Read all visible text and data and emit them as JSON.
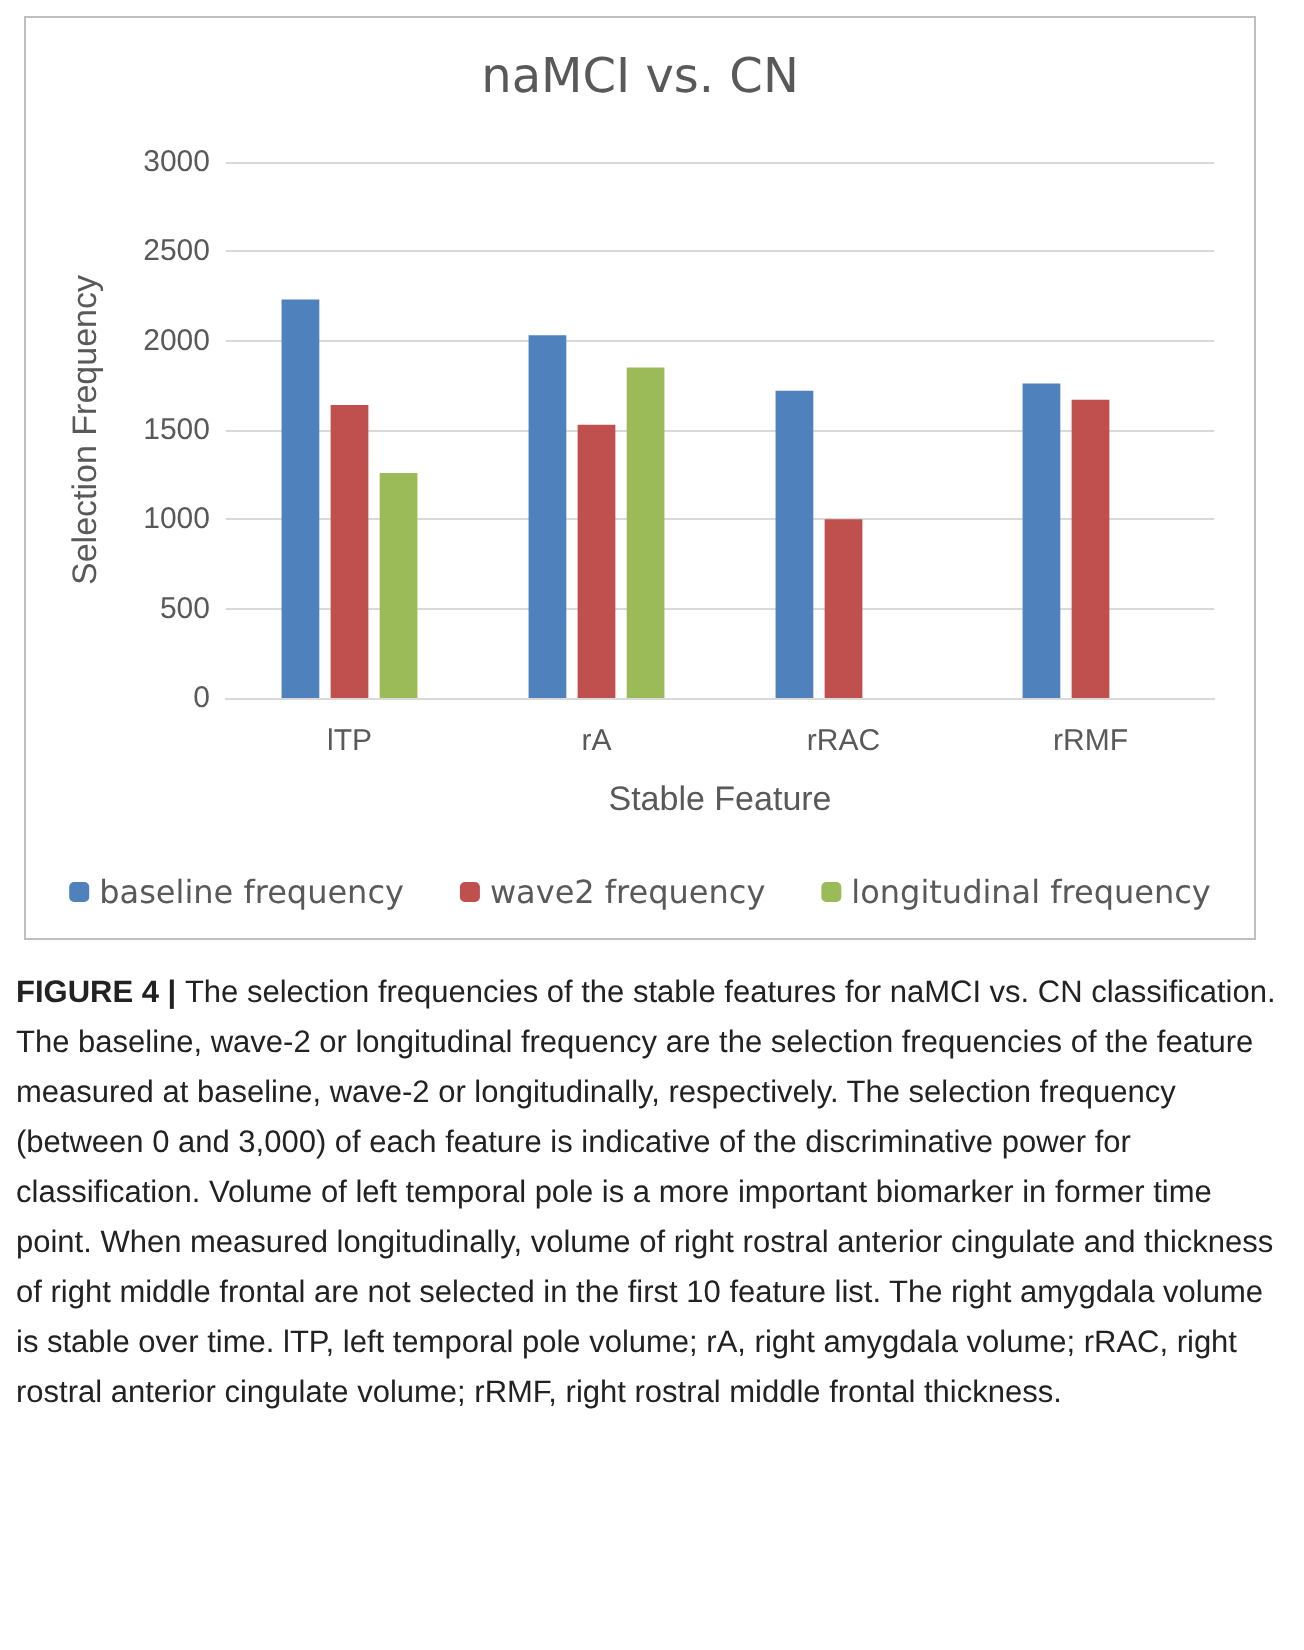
{
  "chart_data": {
    "type": "bar",
    "title": "naMCI vs. CN",
    "xlabel": "Stable Feature",
    "ylabel": "Selection Frequency",
    "categories": [
      "lTP",
      "rA",
      "rRAC",
      "rRMF"
    ],
    "series": [
      {
        "name": "baseline frequency",
        "color": "#4f81bd",
        "values": [
          2230,
          2030,
          1720,
          1760
        ]
      },
      {
        "name": "wave2 frequency",
        "color": "#c0504d",
        "values": [
          1640,
          1530,
          1000,
          1670
        ]
      },
      {
        "name": "longitudinal frequency",
        "color": "#9bbb59",
        "values": [
          1260,
          1850,
          null,
          null
        ]
      }
    ],
    "ylim": [
      0,
      3000
    ],
    "yticks": [
      0,
      500,
      1000,
      1500,
      2000,
      2500,
      3000
    ],
    "grid": "y",
    "legend": "bottom",
    "annotations": [
      "FIGURE 4 |",
      "The selection frequencies of the stable features for naMCI vs. CN classification. The baseline, wave-2 or longitudinal frequency are the selection frequencies of the feature measured at baseline, wave-2 or longitudinally, respectively. The selection frequency (between 0 and 3,000) of each feature is indicative of the discriminative power for classification. Volume of left temporal pole is a more important biomarker in former time point. When measured longitudinally, volume of right rostral anterior cingulate and thickness of right middle frontal are not selected in the first 10 feature list. The right amygdala volume is stable over time. lTP, left temporal pole volume; rA, right amygdala volume; rRAC, right rostral anterior cingulate volume; rRMF, right rostral middle frontal thickness."
    ]
  }
}
